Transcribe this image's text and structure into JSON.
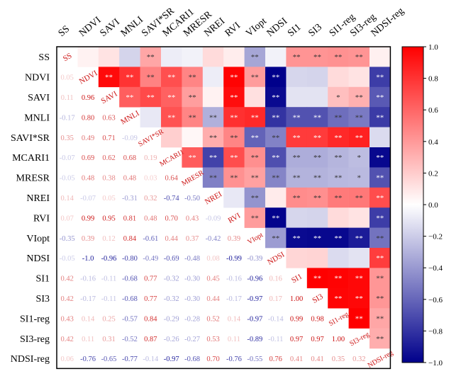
{
  "chart_data": {
    "type": "heatmap",
    "variables": [
      "SS",
      "NDVI",
      "SAVI",
      "MNLI",
      "SAVI*SR",
      "MCARI1",
      "MRESR",
      "NREI",
      "RVI",
      "VIopt",
      "NDSI",
      "SI1",
      "SI3",
      "SI1-reg",
      "SI3-reg",
      "NDSI-reg"
    ],
    "row_labels": [
      "SS",
      "NDVI",
      "SAVI",
      "MNLI",
      "SAVI*SR",
      "MCARI1",
      "MRESR",
      "NREI",
      "RVI",
      "VIopt",
      "NDSI",
      "SI1",
      "SI3",
      "SI1-reg",
      "SI3-reg",
      "NDSI-reg"
    ],
    "col_labels": [
      "SS",
      "NDVI",
      "SAVI",
      "MNLI",
      "SAVI*SR",
      "MCARI1",
      "MRESR",
      "NREI",
      "RVI",
      "VIopt",
      "NDSI",
      "SI1",
      "SI3",
      "SI1-reg",
      "SI3-reg",
      "NDSI-reg"
    ],
    "matrix": [
      [
        1.0,
        0.05,
        0.11,
        -0.17,
        0.35,
        -0.07,
        -0.05,
        0.14,
        0.07,
        -0.35,
        -0.05,
        0.42,
        0.42,
        0.43,
        0.42,
        0.06
      ],
      [
        0.05,
        1.0,
        0.96,
        0.8,
        0.49,
        0.69,
        0.48,
        -0.07,
        0.99,
        0.39,
        -1.0,
        -0.16,
        -0.17,
        0.14,
        0.11,
        -0.76
      ],
      [
        0.11,
        0.96,
        1.0,
        0.63,
        0.71,
        0.62,
        0.38,
        0.05,
        0.95,
        0.12,
        -0.96,
        -0.11,
        -0.11,
        0.25,
        0.31,
        -0.65
      ],
      [
        -0.17,
        0.8,
        0.63,
        1.0,
        -0.09,
        0.68,
        0.48,
        -0.31,
        0.81,
        0.84,
        -0.8,
        -0.68,
        -0.68,
        -0.57,
        -0.52,
        -0.77
      ],
      [
        0.35,
        0.49,
        0.71,
        -0.09,
        1.0,
        0.19,
        0.03,
        0.32,
        0.48,
        -0.61,
        -0.49,
        0.77,
        0.77,
        0.84,
        0.87,
        -0.14
      ],
      [
        -0.07,
        0.69,
        0.62,
        0.68,
        0.19,
        1.0,
        0.64,
        -0.74,
        0.7,
        0.44,
        -0.69,
        -0.32,
        -0.32,
        -0.29,
        -0.26,
        -0.97
      ],
      [
        -0.05,
        0.48,
        0.38,
        0.48,
        0.03,
        0.64,
        1.0,
        -0.5,
        0.43,
        0.37,
        -0.48,
        -0.3,
        -0.3,
        -0.28,
        -0.27,
        -0.68
      ],
      [
        0.14,
        -0.07,
        0.05,
        -0.31,
        0.32,
        -0.74,
        -0.5,
        1.0,
        -0.09,
        -0.42,
        0.08,
        0.45,
        0.44,
        0.52,
        0.53,
        0.7
      ],
      [
        0.07,
        0.99,
        0.95,
        0.81,
        0.48,
        0.7,
        0.43,
        -0.09,
        1.0,
        0.39,
        -0.99,
        -0.16,
        -0.17,
        0.14,
        0.11,
        -0.76
      ],
      [
        -0.35,
        0.39,
        0.12,
        0.84,
        -0.61,
        0.44,
        0.37,
        -0.42,
        0.39,
        1.0,
        -0.39,
        -0.96,
        -0.97,
        -0.97,
        -0.89,
        -0.55
      ],
      [
        -0.05,
        -1.0,
        -0.96,
        -0.8,
        -0.49,
        -0.69,
        -0.48,
        0.08,
        -0.99,
        -0.39,
        1.0,
        0.16,
        0.17,
        -0.14,
        -0.11,
        0.76
      ],
      [
        0.42,
        -0.16,
        -0.11,
        -0.68,
        0.77,
        -0.32,
        -0.3,
        0.45,
        -0.16,
        -0.96,
        0.16,
        1.0,
        1.0,
        0.99,
        0.97,
        0.41
      ],
      [
        0.42,
        -0.17,
        -0.11,
        -0.68,
        0.77,
        -0.32,
        -0.3,
        0.44,
        -0.17,
        -0.97,
        0.17,
        1.0,
        1.0,
        0.98,
        0.97,
        0.41
      ],
      [
        0.43,
        0.14,
        0.25,
        -0.57,
        0.84,
        -0.29,
        -0.28,
        0.52,
        0.14,
        -0.97,
        -0.14,
        0.99,
        0.98,
        1.0,
        1.0,
        0.35
      ],
      [
        0.42,
        0.11,
        0.31,
        -0.52,
        0.87,
        -0.26,
        -0.27,
        0.53,
        0.11,
        -0.89,
        -0.11,
        0.97,
        0.97,
        1.0,
        1.0,
        0.32
      ],
      [
        0.06,
        -0.76,
        -0.65,
        -0.77,
        -0.14,
        -0.97,
        -0.68,
        0.7,
        -0.76,
        -0.55,
        0.76,
        0.41,
        0.41,
        0.35,
        0.32,
        1.0
      ]
    ],
    "significance": [
      [
        "",
        "",
        "",
        "",
        "**",
        "",
        "",
        "",
        "",
        "**",
        "",
        "**",
        "**",
        "**",
        "**",
        ""
      ],
      [
        "",
        "",
        "**",
        "**",
        "**",
        "**",
        "**",
        "",
        "**",
        "**",
        "**",
        "",
        "",
        "",
        "",
        "**"
      ],
      [
        "",
        "**",
        "",
        "**",
        "**",
        "**",
        "**",
        "",
        "**",
        "",
        "**",
        "",
        "",
        "*",
        "**",
        "**"
      ],
      [
        "",
        "**",
        "**",
        "",
        "",
        "**",
        "**",
        "**",
        "**",
        "**",
        "**",
        "**",
        "**",
        "**",
        "**",
        "**"
      ],
      [
        "**",
        "**",
        "**",
        "",
        "",
        "",
        "",
        "**",
        "**",
        "**",
        "**",
        "**",
        "**",
        "**",
        "**",
        ""
      ],
      [
        "",
        "**",
        "**",
        "**",
        "",
        "",
        "**",
        "**",
        "**",
        "**",
        "**",
        "**",
        "**",
        "**",
        "*",
        "**"
      ],
      [
        "",
        "**",
        "**",
        "**",
        "",
        "**",
        "",
        "**",
        "**",
        "**",
        "**",
        "**",
        "**",
        "**",
        "*",
        "**"
      ],
      [
        "",
        "",
        "",
        "**",
        "**",
        "**",
        "**",
        "",
        "",
        "**",
        "",
        "**",
        "**",
        "**",
        "**",
        "**"
      ],
      [
        "",
        "**",
        "**",
        "**",
        "**",
        "**",
        "**",
        "",
        "",
        "**",
        "**",
        "",
        "",
        "",
        "",
        "**"
      ],
      [
        "**",
        "**",
        "",
        "**",
        "**",
        "**",
        "**",
        "**",
        "**",
        "",
        "**",
        "**",
        "**",
        "**",
        "**",
        "**"
      ],
      [
        "",
        "**",
        "**",
        "**",
        "**",
        "**",
        "**",
        "",
        "**",
        "**",
        "",
        "",
        "",
        "",
        "",
        "**"
      ],
      [
        "**",
        "",
        "",
        "**",
        "**",
        "**",
        "**",
        "**",
        "",
        "**",
        "",
        "",
        "**",
        "**",
        "**",
        "**"
      ],
      [
        "**",
        "",
        "",
        "**",
        "**",
        "**",
        "**",
        "**",
        "",
        "**",
        "",
        "**",
        "",
        "**",
        "**",
        "**"
      ],
      [
        "**",
        "",
        "*",
        "**",
        "**",
        "**",
        "**",
        "**",
        "",
        "**",
        "",
        "**",
        "**",
        "",
        "**",
        "**"
      ],
      [
        "**",
        "",
        "**",
        "**",
        "**",
        "*",
        "*",
        "**",
        "",
        "**",
        "",
        "**",
        "**",
        "**",
        "",
        "**"
      ],
      [
        "",
        "**",
        "**",
        "**",
        "",
        "**",
        "**",
        "**",
        "**",
        "**",
        "**",
        "**",
        "**",
        "**",
        "**",
        ""
      ]
    ],
    "colorbar": {
      "min": -1.0,
      "max": 1.0,
      "ticks": [
        "1.0",
        "0.8",
        "0.6",
        "0.4",
        "0.2",
        "0.0",
        "−0.2",
        "−0.4",
        "−0.6",
        "−0.8",
        "−1.0"
      ]
    },
    "colors": {
      "positive": "#ff0000",
      "negative": "#00008b",
      "zero": "#ffffff",
      "text_pos": "#cc1111",
      "text_neg": "#1a1a99",
      "frame": "#000000",
      "sig_mark": "#333333"
    }
  }
}
